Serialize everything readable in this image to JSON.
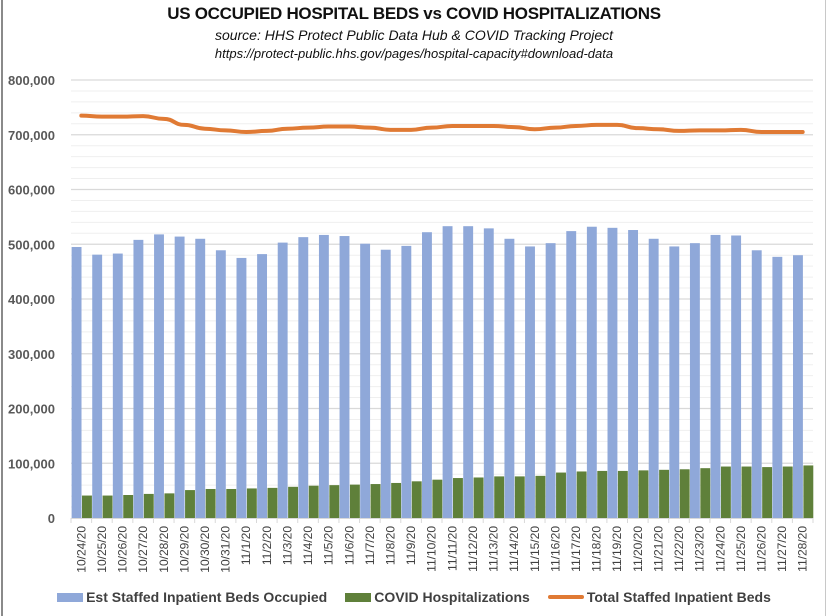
{
  "chart_data": {
    "type": "bar",
    "title": "US OCCUPIED  HOSPITAL BEDS vs COVID HOSPITALIZATIONS",
    "subtitle": "source: HHS Protect Public Data Hub & COVID Tracking Project",
    "annotation": "https://protect-public.hhs.gov/pages/hospital-capacity#download-data",
    "xlabel": "",
    "ylabel": "",
    "ylim": [
      0,
      800000
    ],
    "yticks": [
      0,
      100000,
      200000,
      300000,
      400000,
      500000,
      600000,
      700000,
      800000
    ],
    "ytick_labels": [
      "0",
      "100,000",
      "200,000",
      "300,000",
      "400,000",
      "500,000",
      "600,000",
      "700,000",
      "800,000"
    ],
    "grid": true,
    "minor_grid_step": 20000,
    "legend_position": "bottom",
    "categories": [
      "10/24/20",
      "10/25/20",
      "10/26/20",
      "10/27/20",
      "10/28/20",
      "10/29/20",
      "10/30/20",
      "10/31/20",
      "11/1/20",
      "11/2/20",
      "11/3/20",
      "11/4/20",
      "11/5/20",
      "11/6/20",
      "11/7/20",
      "11/8/20",
      "11/9/20",
      "11/10/20",
      "11/11/20",
      "11/12/20",
      "11/13/20",
      "11/14/20",
      "11/15/20",
      "11/16/20",
      "11/17/20",
      "11/18/20",
      "11/19/20",
      "11/20/20",
      "11/21/20",
      "11/22/20",
      "11/23/20",
      "11/24/20",
      "11/25/20",
      "11/26/20",
      "11/27/20",
      "11/28/20"
    ],
    "series": [
      {
        "name": "Est Staffed Inpatient Beds Occupied",
        "type": "bar",
        "color": "#8fa8d9",
        "values": [
          495000,
          481000,
          483000,
          508000,
          518000,
          514000,
          510000,
          489000,
          475000,
          482000,
          503000,
          513000,
          517000,
          515000,
          501000,
          490000,
          497000,
          522000,
          533000,
          533000,
          529000,
          510000,
          496000,
          502000,
          524000,
          532000,
          530000,
          526000,
          510000,
          496000,
          502000,
          517000,
          516000,
          489000,
          477000,
          480000
        ]
      },
      {
        "name": "COVID Hospitalizations",
        "type": "bar",
        "color": "#5f803a",
        "values": [
          41000,
          41000,
          42000,
          44000,
          45000,
          51000,
          53000,
          53000,
          54000,
          55000,
          57000,
          59000,
          60000,
          61000,
          62000,
          64000,
          67000,
          70000,
          73000,
          74000,
          76000,
          76000,
          77000,
          83000,
          85000,
          86000,
          86000,
          87000,
          88000,
          89000,
          91000,
          94000,
          94000,
          93000,
          94000,
          96000
        ]
      },
      {
        "name": "Total Staffed Inpatient Beds",
        "type": "line",
        "color": "#e07a34",
        "values": [
          735000,
          733000,
          733000,
          734000,
          729000,
          718000,
          711000,
          708000,
          705000,
          707000,
          711000,
          713000,
          715000,
          715000,
          713000,
          709000,
          709000,
          713000,
          716000,
          716000,
          716000,
          714000,
          710000,
          713000,
          716000,
          718000,
          718000,
          712000,
          710000,
          707000,
          708000,
          708000,
          709000,
          705000,
          705000,
          705000
        ]
      }
    ]
  }
}
